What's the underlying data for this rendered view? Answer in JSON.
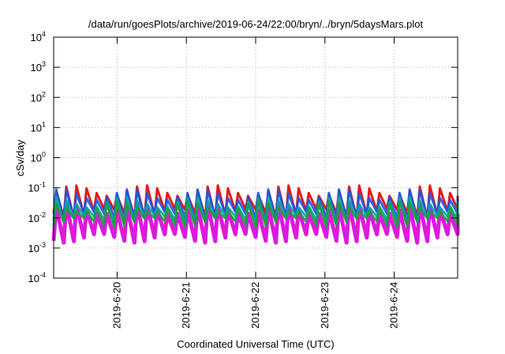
{
  "chart_data": {
    "type": "area",
    "title": "/data/run/goesPlots/archive/2019-06-24/22:00/bryn/../bryn/5daysMars.plot",
    "xlabel": "Coordinated Universal Time (UTC)",
    "ylabel": "cSv/day",
    "yscale": "log",
    "ylim": [
      0.0001,
      10000
    ],
    "yticks": [
      {
        "value": 0.0001,
        "base": "10",
        "exp": "-4"
      },
      {
        "value": 0.001,
        "base": "10",
        "exp": "-3"
      },
      {
        "value": 0.01,
        "base": "10",
        "exp": "-2"
      },
      {
        "value": 0.1,
        "base": "10",
        "exp": "-1"
      },
      {
        "value": 1,
        "base": "10",
        "exp": "0"
      },
      {
        "value": 10,
        "base": "10",
        "exp": "1"
      },
      {
        "value": 100,
        "base": "10",
        "exp": "2"
      },
      {
        "value": 1000,
        "base": "10",
        "exp": "3"
      },
      {
        "value": 10000,
        "base": "10",
        "exp": "4"
      }
    ],
    "xlim": [
      "2019-06-19T02:00",
      "2019-06-24T22:00"
    ],
    "xticks": [
      {
        "value": "2019-06-20T00:00",
        "label": "2019-6-20"
      },
      {
        "value": "2019-06-21T00:00",
        "label": "2019-6-21"
      },
      {
        "value": "2019-06-22T00:00",
        "label": "2019-6-22"
      },
      {
        "value": "2019-06-23T00:00",
        "label": "2019-6-23"
      },
      {
        "value": "2019-06-24T00:00",
        "label": "2019-6-24"
      }
    ],
    "grid": true,
    "oscillation_period_hours": 3.5,
    "bands": [
      {
        "color": "#e60000",
        "low": 0.01,
        "high": 0.12
      },
      {
        "color": "#d900d9",
        "low": 0.0015,
        "high": 0.03
      },
      {
        "color": "#1a56e6",
        "low": 0.008,
        "high": 0.09
      },
      {
        "color": "#00a6a6",
        "low": 0.006,
        "high": 0.05
      },
      {
        "color": "#1a9e3a",
        "low": 0.005,
        "high": 0.035
      }
    ]
  }
}
